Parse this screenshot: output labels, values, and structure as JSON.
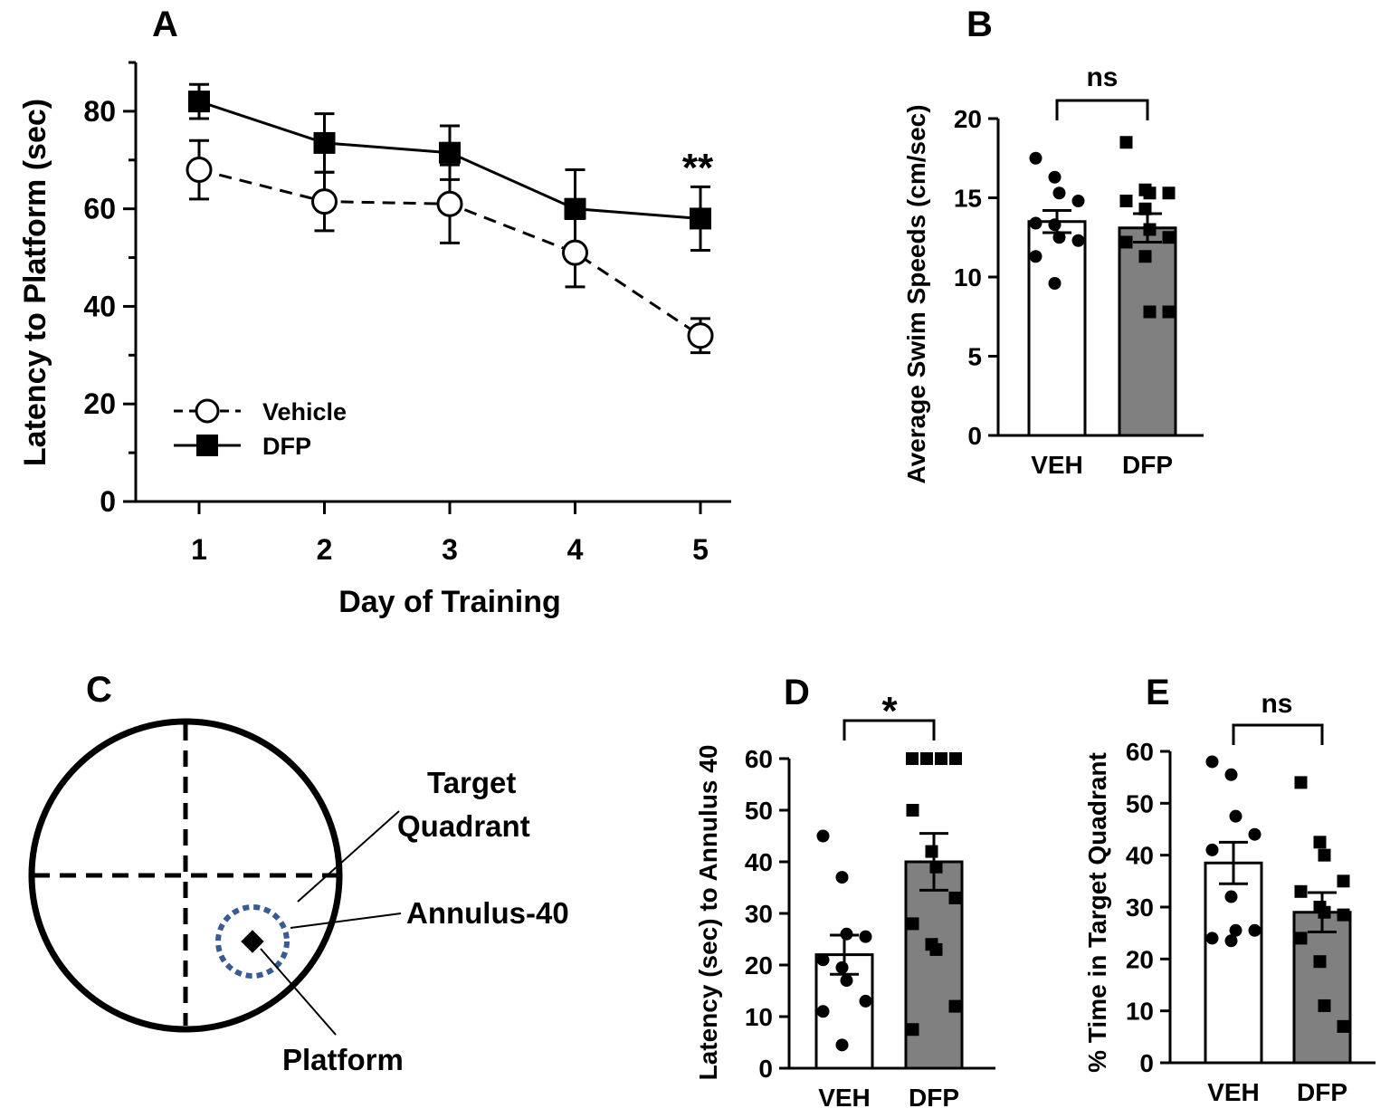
{
  "figure": {
    "panel_labels": [
      "A",
      "B",
      "C",
      "D",
      "E"
    ],
    "colors": {
      "veh_fill": "#ffffff",
      "dfp_fill": "#808080",
      "ink": "#000000",
      "annulus": "#3a5a95"
    }
  },
  "chart_data": [
    {
      "panel": "A",
      "type": "line",
      "xlabel": "Day of Training",
      "ylabel": "Latency to Platform (sec)",
      "x": [
        1,
        2,
        3,
        4,
        5
      ],
      "xticks": [
        "1",
        "2",
        "3",
        "4",
        "5"
      ],
      "ylim": [
        0,
        90
      ],
      "yticks": [
        "0",
        "20",
        "40",
        "60",
        "80"
      ],
      "series": [
        {
          "name": "Vehicle",
          "marker": "open-circle",
          "line": "dashed",
          "values": [
            68,
            61.5,
            61,
            51,
            34
          ],
          "sem": [
            6,
            6,
            8,
            7,
            3.5
          ]
        },
        {
          "name": "DFP",
          "marker": "filled-square",
          "line": "solid",
          "values": [
            82,
            73.5,
            71.5,
            60,
            58
          ],
          "sem": [
            3.5,
            6,
            5.5,
            8,
            6.5
          ]
        }
      ],
      "annotations": [
        {
          "x": 5,
          "text": "**"
        }
      ],
      "legend": {
        "location": "bottom-left",
        "entries": [
          "Vehicle",
          "DFP"
        ]
      }
    },
    {
      "panel": "B",
      "type": "bar",
      "categories": [
        "VEH",
        "DFP"
      ],
      "ylabel": "Average Swim Speeds (cm/sec)",
      "ylim": [
        0,
        20
      ],
      "yticks": [
        "0",
        "5",
        "10",
        "15",
        "20"
      ],
      "values": [
        13.5,
        13.1
      ],
      "sem": [
        0.7,
        0.9
      ],
      "points": [
        [
          17.5,
          16.3,
          15.3,
          14.8,
          13.4,
          13.3,
          12.5,
          12.3,
          11.3,
          9.6
        ],
        [
          18.5,
          15.5,
          15.3,
          15.3,
          14.8,
          14.3,
          13.0,
          12.5,
          12.2,
          11.3,
          7.8,
          7.8
        ]
      ],
      "significance": "ns"
    },
    {
      "panel": "D",
      "type": "bar",
      "categories": [
        "VEH",
        "DFP"
      ],
      "ylabel": "Latency (sec) to Annulus 40",
      "ylim": [
        0,
        60
      ],
      "yticks": [
        "0",
        "10",
        "20",
        "30",
        "40",
        "50",
        "60"
      ],
      "values": [
        22,
        40
      ],
      "sem": [
        3.8,
        5.5
      ],
      "points": [
        [
          45,
          37,
          26,
          25.5,
          21,
          19.5,
          17,
          13,
          11,
          4.5
        ],
        [
          60,
          60,
          60,
          60,
          50,
          42,
          39,
          33,
          28,
          24,
          23,
          12,
          7.5
        ]
      ],
      "significance": "*"
    },
    {
      "panel": "E",
      "type": "bar",
      "categories": [
        "VEH",
        "DFP"
      ],
      "ylabel": "% Time in Target Quadrant",
      "ylim": [
        0,
        60
      ],
      "yticks": [
        "0",
        "10",
        "20",
        "30",
        "40",
        "50",
        "60"
      ],
      "values": [
        38.5,
        29
      ],
      "sem": [
        4,
        3.8
      ],
      "points": [
        [
          58,
          55.5,
          47.5,
          44,
          41,
          32,
          25.5,
          25.5,
          24,
          23.5
        ],
        [
          54,
          42.5,
          40,
          35,
          33,
          30,
          29,
          28.5,
          24,
          19.5,
          11,
          7
        ]
      ],
      "significance": "ns"
    }
  ],
  "diagram": {
    "labels": {
      "target_quadrant_line1": "Target",
      "target_quadrant_line2": "Quadrant",
      "annulus": "Annulus-40",
      "platform": "Platform"
    }
  }
}
